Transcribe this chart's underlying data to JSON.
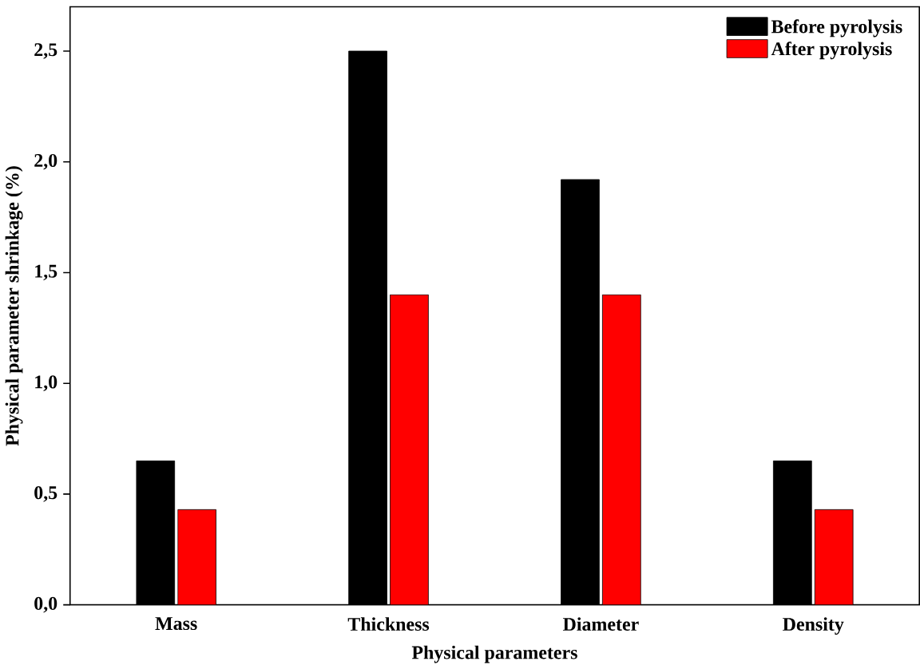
{
  "chart_data": {
    "type": "bar",
    "xlabel": "Physical parameters",
    "ylabel": "Physical parameter shrinkage (%)",
    "categories": [
      "Mass",
      "Thickness",
      "Diameter",
      "Density"
    ],
    "series": [
      {
        "name": "Before pyrolysis",
        "color": "#000000",
        "values": [
          0.65,
          2.5,
          1.92,
          0.65
        ]
      },
      {
        "name": "After pyrolysis",
        "color": "#ff0000",
        "values": [
          0.43,
          1.4,
          1.4,
          0.43
        ]
      }
    ],
    "ylim": [
      0,
      2.7
    ],
    "yticks": [
      {
        "value": 0,
        "label": "0,0"
      },
      {
        "value": 0.5,
        "label": "0,5"
      },
      {
        "value": 1,
        "label": "1,0"
      },
      {
        "value": 1.5,
        "label": "1,5"
      },
      {
        "value": 2,
        "label": "2,0"
      },
      {
        "value": 2.5,
        "label": "2,5"
      }
    ],
    "grid": false,
    "legend": "top right"
  }
}
